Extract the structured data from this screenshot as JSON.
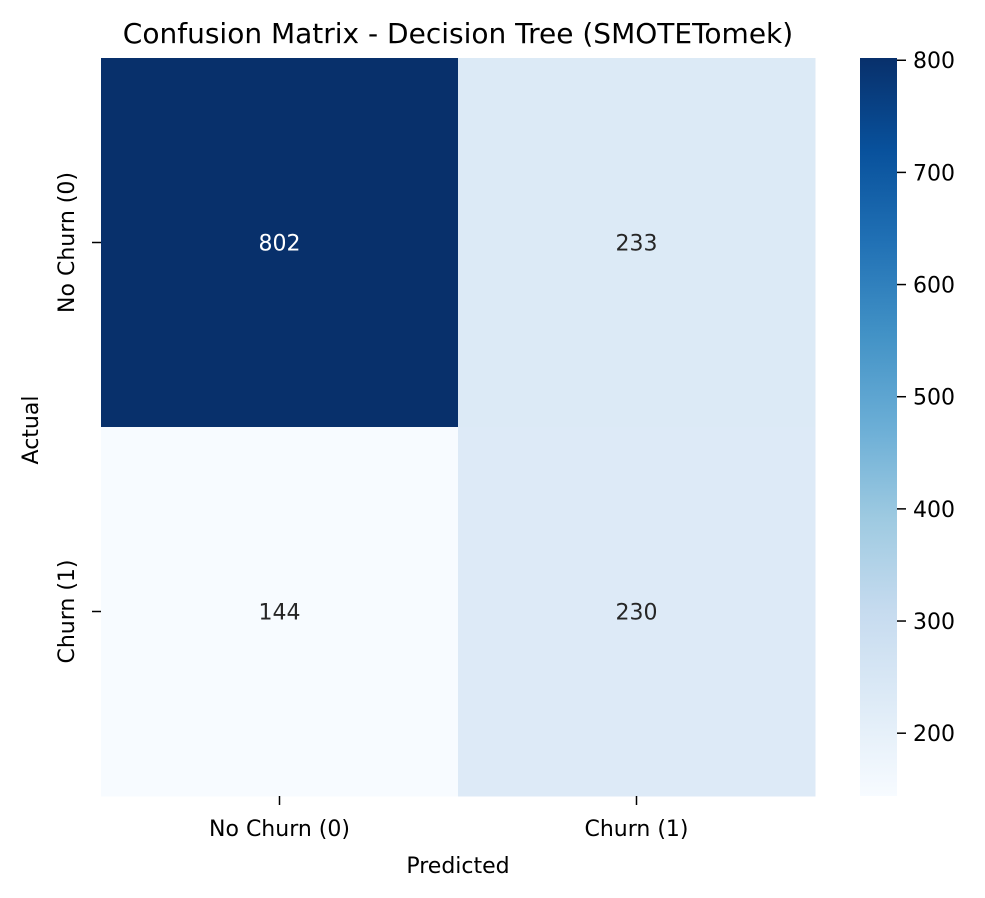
{
  "chart_data": {
    "type": "heatmap",
    "title": "Confusion Matrix - Decision Tree (SMOTETomek)",
    "xlabel": "Predicted",
    "ylabel": "Actual",
    "x_categories": [
      "No Churn (0)",
      "Churn (1)"
    ],
    "y_categories": [
      "No Churn (0)",
      "Churn (1)"
    ],
    "matrix": [
      [
        802,
        233
      ],
      [
        144,
        230
      ]
    ],
    "colormap": "Blues",
    "vmin": 144,
    "vmax": 802,
    "colorbar_ticks": [
      200,
      300,
      400,
      500,
      600,
      700,
      800
    ],
    "colors": {
      "cell_802": "#08306b",
      "cell_233": "#dce9f6",
      "cell_144": "#f7fbff",
      "cell_230": "#dce9f6",
      "annotation_dark_bg": "#ffffff",
      "annotation_light_bg": "#262626"
    }
  }
}
